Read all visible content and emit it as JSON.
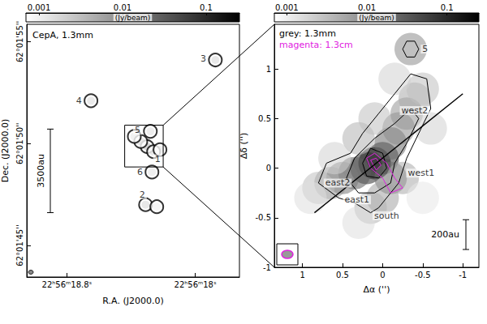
{
  "chart_data": [
    {
      "type": "image",
      "title": "CepA, 1.3mm",
      "x_label": "R.A. (J2000.0)",
      "y_label": "Dec. (J2000.0)",
      "xlim": [
        19.05,
        17.725
      ],
      "ylim": [
        43.45,
        55.85
      ],
      "xticks": [
        {
          "value": 18.8,
          "label": "22ʰ56ᵐ18.8ˢ"
        },
        {
          "value": 18.0,
          "label": "22ʰ56ᵐ18ˢ"
        }
      ],
      "yticks": [
        {
          "value": 45,
          "label": "62°01'45''"
        },
        {
          "value": 50,
          "label": "62°01'50''"
        },
        {
          "value": 55,
          "label": "62°01'55''"
        }
      ],
      "grid": false,
      "colorbar": {
        "label": "(Jy/beam)",
        "range": [
          0.0007,
          0.25
        ],
        "ticks": [
          0.001,
          0.01,
          0.1
        ],
        "log": true
      },
      "emission": [
        [
          18.3,
          49.85,
          0.2
        ],
        [
          18.34,
          50.1,
          0.02
        ],
        [
          18.26,
          49.6,
          0.02
        ],
        [
          18.22,
          49.7,
          0.005
        ],
        [
          18.38,
          50.35,
          0.005
        ],
        [
          18.28,
          50.6,
          0.01
        ],
        [
          18.27,
          48.6,
          0.008
        ],
        [
          18.31,
          47.0,
          0.02
        ],
        [
          18.24,
          46.9,
          0.003
        ],
        [
          17.875,
          54.1,
          0.02
        ],
        [
          18.65,
          52.1,
          0.015
        ]
      ],
      "annotations": [
        {
          "text": "1",
          "x": 18.235,
          "y": 49.25
        },
        {
          "text": "2",
          "x": 18.33,
          "y": 47.5
        },
        {
          "text": "3",
          "x": 17.95,
          "y": 54.15
        },
        {
          "text": "4",
          "x": 18.725,
          "y": 52.1
        },
        {
          "text": "5",
          "x": 18.36,
          "y": 50.65
        },
        {
          "text": "6",
          "x": 18.345,
          "y": 48.6
        }
      ],
      "scale_bar": {
        "label": "3500au",
        "length": 4.1
      },
      "zoom_box": {
        "x": [
          18.44,
          18.2
        ],
        "y": [
          48.85,
          50.9
        ]
      }
    },
    {
      "type": "image",
      "x_label": "Δα ('')",
      "y_label": "Δδ ('')",
      "xlim": [
        1.35,
        -1.2
      ],
      "ylim": [
        -1,
        1.45
      ],
      "xticks": [
        1,
        0.5,
        0,
        -0.5,
        -1
      ],
      "yticks": [
        -1,
        -0.5,
        0,
        0.5,
        1
      ],
      "grid": false,
      "colorbar": {
        "label": "(Jy/beam)",
        "range": [
          0.0007,
          0.25
        ],
        "ticks": [
          0.001,
          0.01,
          0.1
        ],
        "log": true
      },
      "emission": [
        [
          0.1,
          0.05,
          0.2
        ],
        [
          0.2,
          0.0,
          0.08
        ],
        [
          0.0,
          0.1,
          0.08
        ],
        [
          0.35,
          -0.05,
          0.03
        ],
        [
          0.5,
          -0.1,
          0.015
        ],
        [
          0.65,
          -0.15,
          0.008
        ],
        [
          0.8,
          -0.2,
          0.003
        ],
        [
          -0.1,
          0.25,
          0.02
        ],
        [
          -0.2,
          0.4,
          0.01
        ],
        [
          -0.3,
          0.55,
          0.008
        ],
        [
          -0.4,
          0.7,
          0.005
        ],
        [
          -0.5,
          0.8,
          0.003
        ],
        [
          -0.1,
          -0.1,
          0.02
        ],
        [
          0.0,
          -0.3,
          0.006
        ],
        [
          0.15,
          -0.4,
          0.004
        ],
        [
          -0.25,
          -0.1,
          0.005
        ],
        [
          0.3,
          0.3,
          0.004
        ],
        [
          0.1,
          0.5,
          0.003
        ],
        [
          -0.15,
          0.9,
          0.002
        ],
        [
          -0.35,
          1.2,
          0.01
        ],
        [
          -0.6,
          0.4,
          0.002
        ],
        [
          0.6,
          0.1,
          0.002
        ],
        [
          0.9,
          -0.3,
          0.0015
        ],
        [
          -0.5,
          -0.3,
          0.0012
        ],
        [
          0.3,
          -0.55,
          0.0015
        ]
      ],
      "series": [
        {
          "name": "grey: 1.3mm",
          "color": "#000000",
          "contours": [
            [
              [
                0.8,
                -0.15
              ],
              [
                0.7,
                0.05
              ],
              [
                0.4,
                0.15
              ],
              [
                0.25,
                0.35
              ],
              [
                0.05,
                0.55
              ],
              [
                -0.15,
                0.75
              ],
              [
                -0.35,
                0.95
              ],
              [
                -0.55,
                0.9
              ],
              [
                -0.6,
                0.6
              ],
              [
                -0.45,
                0.35
              ],
              [
                -0.3,
                0.1
              ],
              [
                -0.2,
                -0.15
              ],
              [
                0.05,
                -0.4
              ],
              [
                0.15,
                -0.45
              ],
              [
                0.35,
                -0.35
              ],
              [
                0.55,
                -0.3
              ],
              [
                0.8,
                -0.15
              ]
            ],
            [
              [
                0.45,
                -0.1
              ],
              [
                0.35,
                0.1
              ],
              [
                0.1,
                0.3
              ],
              [
                -0.15,
                0.45
              ],
              [
                -0.35,
                0.6
              ],
              [
                -0.45,
                0.5
              ],
              [
                -0.3,
                0.25
              ],
              [
                -0.15,
                0.05
              ],
              [
                -0.1,
                -0.15
              ],
              [
                0.1,
                -0.25
              ],
              [
                0.3,
                -0.25
              ],
              [
                0.45,
                -0.1
              ]
            ],
            [
              [
                0.25,
                0.05
              ],
              [
                0.15,
                0.2
              ],
              [
                0.0,
                0.15
              ],
              [
                -0.05,
                0.0
              ],
              [
                0.05,
                -0.1
              ],
              [
                0.2,
                -0.08
              ],
              [
                0.25,
                0.05
              ]
            ],
            [
              [
                -0.25,
                1.2
              ],
              [
                -0.3,
                1.28
              ],
              [
                -0.4,
                1.28
              ],
              [
                -0.45,
                1.2
              ],
              [
                -0.4,
                1.12
              ],
              [
                -0.3,
                1.12
              ],
              [
                -0.25,
                1.2
              ]
            ]
          ]
        },
        {
          "name": "magenta: 1.3cm",
          "color": "#e020e0",
          "contours": [
            [
              [
                0.2,
                0.1
              ],
              [
                0.1,
                0.15
              ],
              [
                -0.05,
                0.05
              ],
              [
                -0.15,
                -0.1
              ],
              [
                -0.25,
                -0.2
              ],
              [
                -0.1,
                -0.25
              ],
              [
                0.0,
                -0.1
              ],
              [
                0.15,
                0.0
              ],
              [
                0.2,
                0.1
              ]
            ],
            [
              [
                0.15,
                0.08
              ],
              [
                0.08,
                0.1
              ],
              [
                0.02,
                0.03
              ],
              [
                0.08,
                -0.02
              ],
              [
                0.15,
                0.08
              ]
            ]
          ]
        }
      ],
      "axis_line": [
        [
          0.85,
          -0.45
        ],
        [
          -1.0,
          0.75
        ]
      ],
      "annotations": [
        {
          "text": "5",
          "x": -0.53,
          "y": 1.2
        },
        {
          "text": "west2",
          "x": -0.4,
          "y": 0.58
        },
        {
          "text": "west1",
          "x": -0.48,
          "y": -0.05
        },
        {
          "text": "east2",
          "x": 0.56,
          "y": -0.15
        },
        {
          "text": "east1",
          "x": 0.32,
          "y": -0.32
        },
        {
          "text": "south",
          "x": -0.05,
          "y": -0.48
        }
      ],
      "scale_bar": {
        "label": "200au",
        "length": 0.3
      }
    }
  ]
}
